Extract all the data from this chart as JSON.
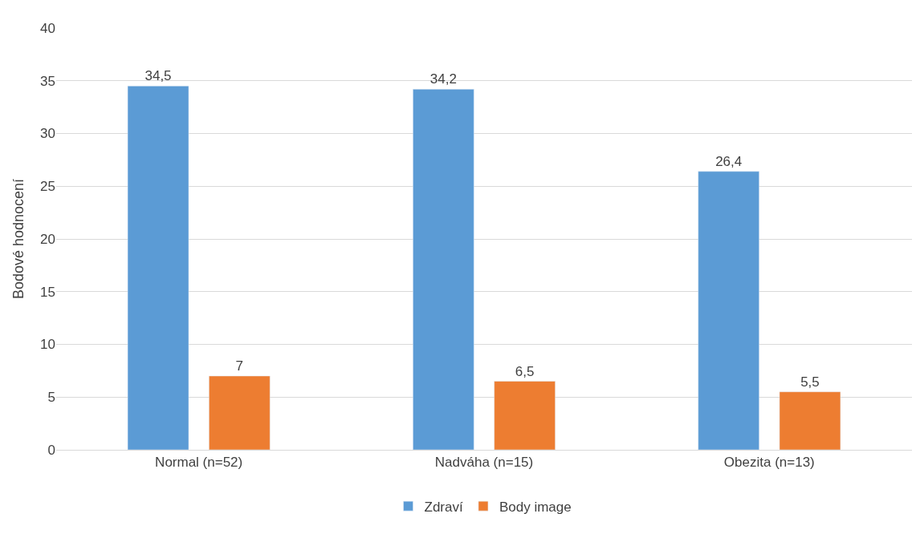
{
  "chart_data": {
    "type": "bar",
    "ylabel": "Bodové hodnocení",
    "categories": [
      "Normal (n=52)",
      "Nadváha (n=15)",
      "Obezita (n=13)"
    ],
    "series": [
      {
        "name": "Zdraví",
        "color": "#5b9bd5",
        "values": [
          34.5,
          34.2,
          26.4
        ],
        "value_labels": [
          "34,5",
          "34,2",
          "26,4"
        ]
      },
      {
        "name": "Body image",
        "color": "#ed7d31",
        "values": [
          7,
          6.5,
          5.5
        ],
        "value_labels": [
          "7",
          "6,5",
          "5,5"
        ]
      }
    ],
    "ylim": [
      0,
      40
    ],
    "yticks": [
      0,
      5,
      10,
      15,
      20,
      25,
      30,
      35,
      40
    ],
    "grid": "y",
    "legend": "bottom"
  }
}
